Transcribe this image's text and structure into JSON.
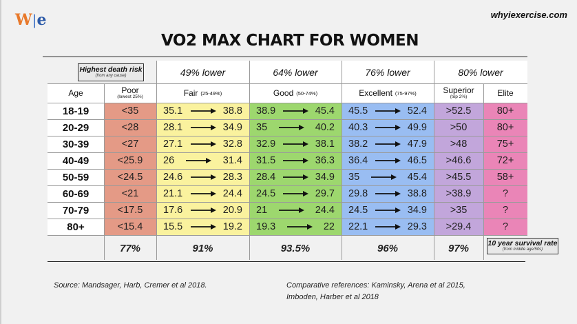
{
  "header": {
    "logo": {
      "w": "W",
      "bar": "|",
      "e": "e"
    },
    "site": "whyiexercise.com",
    "title": "VO2 MAX CHART FOR WOMEN"
  },
  "death_risk": {
    "label": "Highest death risk",
    "sub": "(from any cause)"
  },
  "risk_reductions": [
    "49% lower",
    "64% lower",
    "76% lower",
    "80% lower"
  ],
  "columns": {
    "age": "Age",
    "poor": {
      "name": "Poor",
      "range": "(lowest 25%)"
    },
    "fair": {
      "name": "Fair",
      "range": "(25-49%)"
    },
    "good": {
      "name": "Good",
      "range": "(50-74%)"
    },
    "excellent": {
      "name": "Excellent",
      "range": "(75-97%)"
    },
    "superior": {
      "name": "Superior",
      "range": "(top 2%)"
    },
    "elite": {
      "name": "Elite"
    }
  },
  "rows": [
    {
      "age": "18-19",
      "poor": "<35",
      "fair": [
        "35.1",
        "38.8"
      ],
      "good": [
        "38.9",
        "45.4"
      ],
      "excellent": [
        "45.5",
        "52.4"
      ],
      "superior": ">52.5",
      "elite": "80+"
    },
    {
      "age": "20-29",
      "poor": "<28",
      "fair": [
        "28.1",
        "34.9"
      ],
      "good": [
        "35",
        "40.2"
      ],
      "excellent": [
        "40.3",
        "49.9"
      ],
      "superior": ">50",
      "elite": "80+"
    },
    {
      "age": "30-39",
      "poor": "<27",
      "fair": [
        "27.1",
        "32.8"
      ],
      "good": [
        "32.9",
        "38.1"
      ],
      "excellent": [
        "38.2",
        "47.9"
      ],
      "superior": ">48",
      "elite": "75+"
    },
    {
      "age": "40-49",
      "poor": "<25.9",
      "fair": [
        "26",
        "31.4"
      ],
      "good": [
        "31.5",
        "36.3"
      ],
      "excellent": [
        "36.4",
        "46.5"
      ],
      "superior": ">46.6",
      "elite": "72+"
    },
    {
      "age": "50-59",
      "poor": "<24.5",
      "fair": [
        "24.6",
        "28.3"
      ],
      "good": [
        "28.4",
        "34.9"
      ],
      "excellent": [
        "35",
        "45.4"
      ],
      "superior": ">45.5",
      "elite": "58+"
    },
    {
      "age": "60-69",
      "poor": "<21",
      "fair": [
        "21.1",
        "24.4"
      ],
      "good": [
        "24.5",
        "29.7"
      ],
      "excellent": [
        "29.8",
        "38.8"
      ],
      "superior": ">38.9",
      "elite": "?"
    },
    {
      "age": "70-79",
      "poor": "<17.5",
      "fair": [
        "17.6",
        "20.9"
      ],
      "good": [
        "21",
        "24.4"
      ],
      "excellent": [
        "24.5",
        "34.9"
      ],
      "superior": ">35",
      "elite": "?"
    },
    {
      "age": "80+",
      "poor": "<15.4",
      "fair": [
        "15.5",
        "19.2"
      ],
      "good": [
        "19.3",
        "22"
      ],
      "excellent": [
        "22.1",
        "29.3"
      ],
      "superior": ">29.4",
      "elite": "?"
    }
  ],
  "survival": {
    "values": [
      "77%",
      "91%",
      "93.5%",
      "96%",
      "97%"
    ],
    "label": "10 year survival rate",
    "sub": "(from middle age/50s)"
  },
  "footer": {
    "source": "Source:  Mandsager, Harb, Cremer et al 2018.",
    "refs_line1": "Comparative references:  Kaminsky, Arena et al 2015,",
    "refs_line2": "Imboden, Harber et al 2018"
  },
  "colors": {
    "poor": "#e49a86",
    "fair": "#faf29e",
    "good": "#9dd76e",
    "excellent": "#99bdf2",
    "superior": "#c2a6db",
    "elite": "#ea85b7",
    "logo_w": "#e8792b",
    "logo_e": "#2c5aa8"
  }
}
